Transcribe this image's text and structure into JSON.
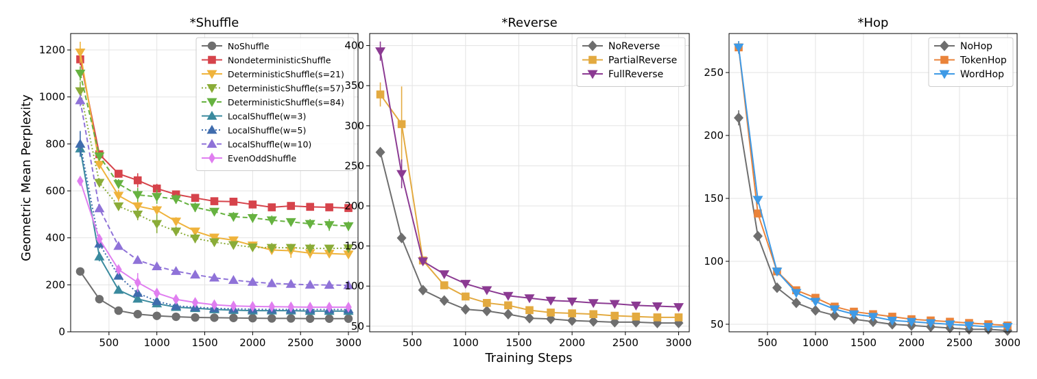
{
  "figure": {
    "xlabel": "Training Steps",
    "ylabel": "Geometric Mean Perplexity"
  },
  "chart_data": [
    {
      "type": "line",
      "title": "*Shuffle",
      "x": [
        200,
        400,
        600,
        800,
        1000,
        1200,
        1400,
        1600,
        1800,
        2000,
        2200,
        2400,
        2600,
        2800,
        3000
      ],
      "xticks": [
        500,
        1000,
        1500,
        2000,
        2500,
        3000
      ],
      "xlim": [
        100,
        3100
      ],
      "ylim": [
        0,
        1270
      ],
      "yticks": [
        0,
        200,
        400,
        600,
        800,
        1000,
        1200
      ],
      "legend_loc": "top-right",
      "series": [
        {
          "name": "NoShuffle",
          "color": "#6e6e6e",
          "marker": "circle",
          "dash": "solid",
          "values": [
            257,
            139,
            90,
            75,
            68,
            64,
            61,
            60,
            59,
            58,
            57,
            57,
            56,
            56,
            56
          ],
          "err": [
            4,
            3,
            2,
            2,
            1,
            1,
            1,
            1,
            1,
            1,
            1,
            1,
            1,
            1,
            1
          ]
        },
        {
          "name": "NondeterministicShuffle",
          "color": "#d6434b",
          "marker": "square",
          "dash": "solid",
          "values": [
            1160,
            756,
            673,
            645,
            610,
            585,
            570,
            556,
            554,
            542,
            530,
            536,
            532,
            530,
            527
          ],
          "err": [
            25,
            15,
            12,
            30,
            20,
            10,
            10,
            8,
            8,
            15,
            10,
            8,
            8,
            8,
            8
          ]
        },
        {
          "name": "DeterministicShuffle(s=21)",
          "color": "#efb33c",
          "marker": "tri-down",
          "dash": "solid",
          "values": [
            1190,
            712,
            580,
            535,
            518,
            470,
            428,
            402,
            390,
            368,
            348,
            345,
            335,
            333,
            330
          ],
          "err": [
            45,
            20,
            25,
            20,
            20,
            18,
            15,
            15,
            15,
            15,
            15,
            30,
            22,
            15,
            15
          ]
        },
        {
          "name": "DeterministicShuffle(s=57)",
          "color": "#8aac38",
          "marker": "tri-down",
          "dash": "dotted",
          "values": [
            1025,
            635,
            535,
            500,
            460,
            428,
            398,
            382,
            370,
            360,
            358,
            358,
            355,
            355,
            356
          ],
          "err": [
            40,
            18,
            15,
            25,
            40,
            20,
            20,
            15,
            15,
            15,
            20,
            15,
            20,
            15,
            15
          ]
        },
        {
          "name": "DeterministicShuffle(s=84)",
          "color": "#66b240",
          "marker": "tri-down",
          "dash": "dashed",
          "values": [
            1100,
            748,
            630,
            583,
            575,
            565,
            530,
            512,
            490,
            485,
            475,
            468,
            460,
            455,
            450
          ],
          "err": [
            30,
            15,
            20,
            30,
            30,
            20,
            20,
            15,
            20,
            20,
            20,
            15,
            20,
            25,
            20
          ]
        },
        {
          "name": "LocalShuffle(w=3)",
          "color": "#3a8a9e",
          "marker": "tri-up",
          "dash": "solid",
          "values": [
            780,
            320,
            178,
            140,
            120,
            105,
            100,
            95,
            92,
            90,
            90,
            90,
            88,
            88,
            88
          ],
          "err": [
            20,
            20,
            10,
            8,
            6,
            5,
            5,
            5,
            5,
            5,
            5,
            5,
            5,
            5,
            5
          ]
        },
        {
          "name": "LocalShuffle(w=5)",
          "color": "#3f6cad",
          "marker": "tri-up",
          "dash": "dotted",
          "values": [
            800,
            375,
            238,
            165,
            130,
            110,
            105,
            100,
            98,
            96,
            95,
            95,
            95,
            95,
            95
          ],
          "err": [
            55,
            20,
            12,
            8,
            6,
            5,
            5,
            5,
            5,
            5,
            5,
            5,
            5,
            5,
            5
          ]
        },
        {
          "name": "LocalShuffle(w=10)",
          "color": "#8f72d8",
          "marker": "tri-up",
          "dash": "dashed",
          "values": [
            985,
            525,
            365,
            305,
            278,
            258,
            243,
            230,
            220,
            212,
            206,
            203,
            200,
            199,
            198
          ],
          "err": [
            25,
            15,
            12,
            10,
            8,
            6,
            6,
            5,
            5,
            5,
            5,
            5,
            5,
            5,
            5
          ]
        },
        {
          "name": "EvenOddShuffle",
          "color": "#e07ef0",
          "marker": "diamond",
          "dash": "solid",
          "values": [
            642,
            395,
            265,
            210,
            165,
            138,
            125,
            115,
            110,
            108,
            107,
            106,
            105,
            105,
            105
          ],
          "err": [
            15,
            15,
            15,
            40,
            10,
            8,
            8,
            6,
            6,
            5,
            5,
            5,
            5,
            5,
            5
          ]
        }
      ]
    },
    {
      "type": "line",
      "title": "*Reverse",
      "x": [
        200,
        400,
        600,
        800,
        1000,
        1200,
        1400,
        1600,
        1800,
        2000,
        2200,
        2400,
        2600,
        2800,
        3000
      ],
      "xticks": [
        500,
        1000,
        1500,
        2000,
        2500,
        3000
      ],
      "xlim": [
        100,
        3100
      ],
      "ylim": [
        43,
        415
      ],
      "yticks": [
        50,
        100,
        150,
        200,
        250,
        300,
        350,
        400
      ],
      "legend_loc": "top-right",
      "series": [
        {
          "name": "NoReverse",
          "color": "#6e6e6e",
          "marker": "diamond-fat",
          "dash": "solid",
          "values": [
            267,
            160,
            95,
            82,
            71,
            69,
            65,
            60,
            59,
            57,
            56,
            55,
            55,
            54,
            54
          ],
          "err": [
            3,
            3,
            2,
            2,
            1,
            1,
            1,
            1,
            1,
            1,
            1,
            1,
            1,
            1,
            1
          ]
        },
        {
          "name": "PartialReverse",
          "color": "#e3aa40",
          "marker": "square",
          "dash": "solid",
          "values": [
            339,
            302,
            132,
            101,
            87,
            79,
            76,
            70,
            67,
            66,
            65,
            63,
            62,
            61,
            61
          ],
          "err": [
            15,
            47,
            4,
            3,
            3,
            2,
            2,
            2,
            2,
            2,
            2,
            2,
            2,
            2,
            2
          ]
        },
        {
          "name": "FullReverse",
          "color": "#8b3a92",
          "marker": "tri-down",
          "dash": "solid",
          "values": [
            393,
            240,
            131,
            115,
            103,
            95,
            88,
            85,
            82,
            81,
            79,
            78,
            76,
            75,
            74
          ],
          "err": [
            12,
            18,
            4,
            3,
            3,
            2,
            2,
            2,
            2,
            2,
            2,
            2,
            2,
            2,
            2
          ]
        }
      ]
    },
    {
      "type": "line",
      "title": "*Hop",
      "x": [
        200,
        400,
        600,
        800,
        1000,
        1200,
        1400,
        1600,
        1800,
        2000,
        2200,
        2400,
        2600,
        2800,
        3000
      ],
      "xticks": [
        500,
        1000,
        1500,
        2000,
        2500,
        3000
      ],
      "xlim": [
        100,
        3100
      ],
      "ylim": [
        44,
        281
      ],
      "yticks": [
        50,
        100,
        150,
        200,
        250
      ],
      "legend_loc": "top-right",
      "series": [
        {
          "name": "NoHop",
          "color": "#6e6e6e",
          "marker": "diamond-fat",
          "dash": "solid",
          "values": [
            214,
            120,
            79,
            67,
            61,
            57,
            54,
            52,
            50,
            49,
            48,
            47,
            46,
            46,
            45
          ],
          "err": [
            6,
            2,
            1,
            1,
            1,
            1,
            1,
            1,
            1,
            1,
            1,
            1,
            1,
            1,
            1
          ]
        },
        {
          "name": "TokenHop",
          "color": "#ea833a",
          "marker": "square",
          "dash": "solid",
          "values": [
            270,
            138,
            92,
            77,
            71,
            64,
            60,
            58,
            56,
            54,
            53,
            52,
            51,
            50,
            49
          ],
          "err": [
            5,
            2,
            2,
            1,
            1,
            1,
            1,
            1,
            1,
            1,
            1,
            1,
            1,
            1,
            1
          ]
        },
        {
          "name": "WordHop",
          "color": "#3e9ae6",
          "marker": "tri-down",
          "dash": "solid",
          "values": [
            270,
            149,
            92,
            75,
            68,
            62,
            58,
            56,
            53,
            52,
            51,
            50,
            49,
            48,
            48
          ],
          "err": [
            5,
            3,
            2,
            1,
            1,
            1,
            1,
            1,
            1,
            1,
            1,
            1,
            1,
            1,
            1
          ]
        }
      ]
    }
  ]
}
